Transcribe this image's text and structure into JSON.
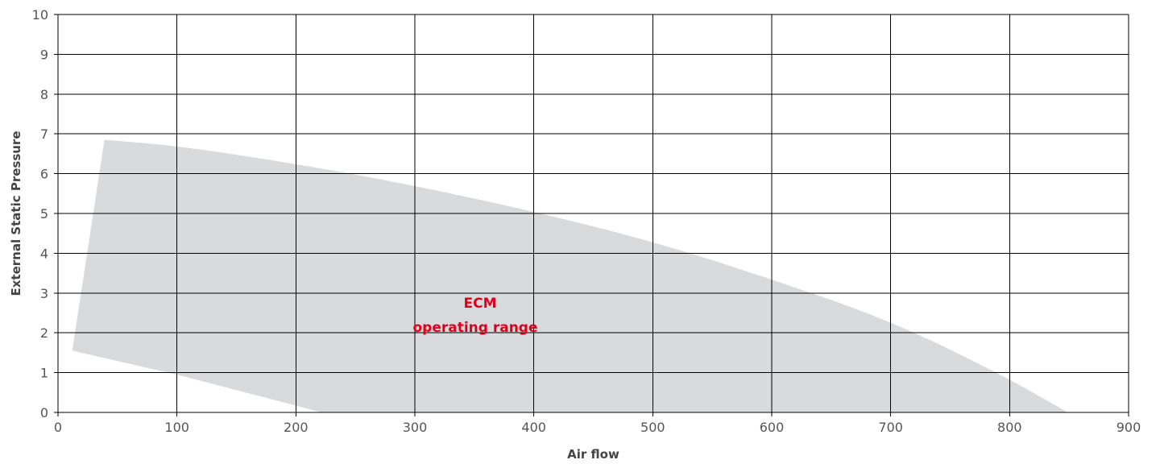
{
  "chart_data": {
    "type": "area",
    "title": "",
    "xlabel": "Air flow",
    "ylabel": "External Static Pressure",
    "xlim": [
      0,
      900
    ],
    "ylim": [
      0,
      10
    ],
    "x_ticks": [
      0,
      100,
      200,
      300,
      400,
      500,
      600,
      700,
      800,
      900
    ],
    "y_ticks": [
      0,
      1,
      2,
      3,
      4,
      5,
      6,
      7,
      8,
      9,
      10
    ],
    "grid": true,
    "region_color": "#d9dadc",
    "grid_color": "#000000",
    "annotation_color": "#e0001b",
    "annotation": {
      "lines": [
        "ECM",
        "operating range"
      ],
      "x": 357,
      "y_lines": [
        2.75,
        2.15
      ]
    },
    "series": [
      {
        "shape": "region",
        "upper": [
          {
            "x": 39,
            "y": 6.85
          },
          {
            "x": 100,
            "y": 6.7
          },
          {
            "x": 200,
            "y": 6.25
          },
          {
            "x": 300,
            "y": 5.7
          },
          {
            "x": 400,
            "y": 5.05
          },
          {
            "x": 500,
            "y": 4.3
          },
          {
            "x": 600,
            "y": 3.35
          },
          {
            "x": 700,
            "y": 2.3
          },
          {
            "x": 790,
            "y": 1.0
          },
          {
            "x": 849,
            "y": 0
          }
        ],
        "lower": [
          {
            "x": 12,
            "y": 1.55
          },
          {
            "x": 100,
            "y": 0.95
          },
          {
            "x": 222,
            "y": 0
          }
        ]
      }
    ]
  }
}
